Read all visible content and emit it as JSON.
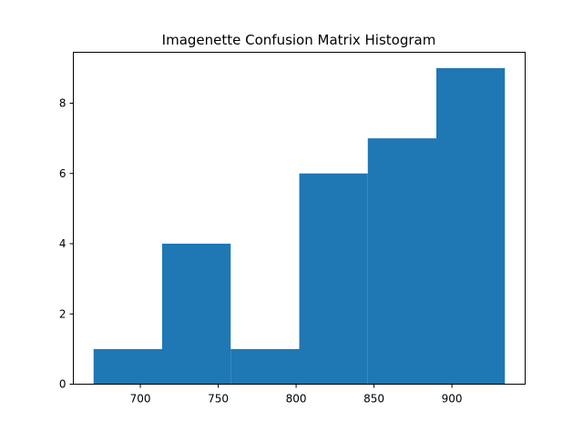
{
  "chart_data": {
    "type": "bar",
    "title": "Imagenette Confusion Matrix Histogram",
    "xlabel": "",
    "ylabel": "",
    "bins": [
      {
        "start": 670,
        "end": 714,
        "count": 1
      },
      {
        "start": 714,
        "end": 758,
        "count": 4
      },
      {
        "start": 758,
        "end": 802,
        "count": 1
      },
      {
        "start": 802,
        "end": 846,
        "count": 6
      },
      {
        "start": 846,
        "end": 890,
        "count": 7
      },
      {
        "start": 890,
        "end": 934,
        "count": 9
      }
    ],
    "xlim": [
      657,
      947
    ],
    "ylim": [
      0,
      9.45
    ],
    "xticks": [
      "700",
      "750",
      "800",
      "850",
      "900"
    ],
    "xtick_values": [
      700,
      750,
      800,
      850,
      900
    ],
    "yticks": [
      "0",
      "2",
      "4",
      "6",
      "8"
    ],
    "ytick_values": [
      0,
      2,
      4,
      6,
      8
    ],
    "bar_color": "#1f77b4",
    "grid": false,
    "legend": "none"
  }
}
